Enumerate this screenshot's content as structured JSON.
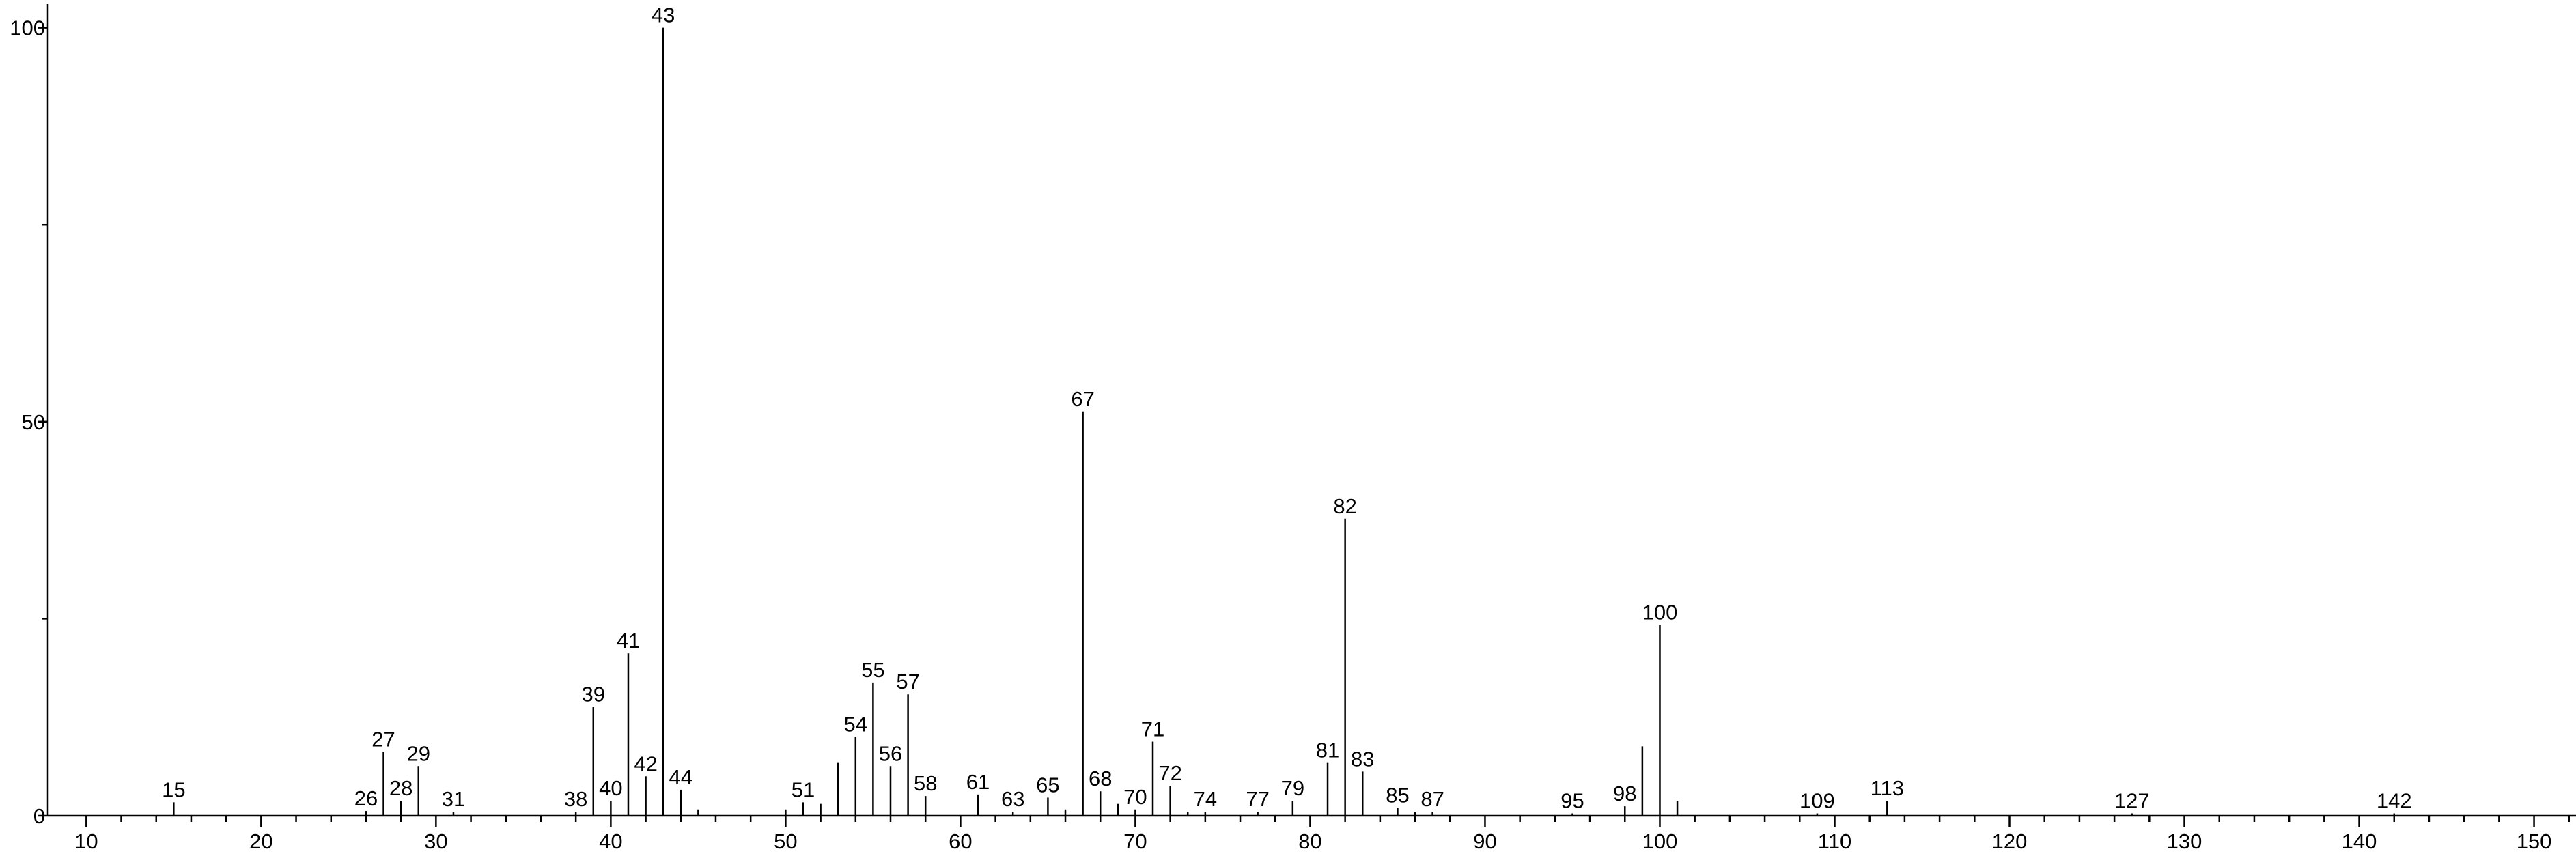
{
  "chart_data": {
    "type": "spectrum",
    "x": [
      15,
      26,
      27,
      28,
      29,
      31,
      38,
      39,
      40,
      41,
      42,
      43,
      44,
      45,
      50,
      51,
      52,
      53,
      54,
      55,
      56,
      57,
      58,
      61,
      63,
      65,
      66,
      67,
      68,
      69,
      70,
      71,
      72,
      73,
      74,
      77,
      79,
      81,
      82,
      83,
      85,
      86,
      87,
      95,
      98,
      99,
      100,
      101,
      109,
      113,
      127,
      142
    ],
    "values": [
      1.7,
      0.6,
      8.1,
      1.9,
      6.3,
      0.5,
      0.5,
      13.8,
      1.9,
      20.6,
      5,
      100,
      3.3,
      0.8,
      0.8,
      1.7,
      1.5,
      6.7,
      10,
      16.9,
      6.3,
      15.4,
      2.5,
      2.7,
      0.5,
      2.3,
      0.8,
      51.3,
      3.1,
      1.5,
      0.8,
      9.4,
      3.8,
      0.5,
      0.5,
      0.5,
      1.9,
      6.7,
      37.7,
      5.6,
      1,
      0.5,
      0.5,
      0.3,
      1.2,
      8.8,
      24.2,
      1.9,
      0.3,
      1.9,
      0.3,
      0.3
    ],
    "peak_labels": [
      15,
      26,
      27,
      28,
      29,
      31,
      38,
      39,
      40,
      41,
      42,
      43,
      44,
      null,
      null,
      51,
      null,
      null,
      54,
      55,
      56,
      57,
      58,
      61,
      63,
      65,
      null,
      67,
      68,
      null,
      70,
      71,
      72,
      null,
      74,
      77,
      79,
      81,
      82,
      83,
      85,
      null,
      87,
      95,
      98,
      null,
      100,
      null,
      109,
      113,
      127,
      142
    ],
    "color": "#000000",
    "xlim": [
      7.8,
      152.4
    ],
    "ylim": [
      0,
      103
    ],
    "xticks": [
      10,
      20,
      30,
      40,
      50,
      60,
      70,
      80,
      90,
      100,
      110,
      120,
      130,
      140,
      150
    ],
    "xminorticks": [
      12,
      14,
      16,
      18,
      22,
      24,
      26,
      28,
      32,
      34,
      36,
      38,
      42,
      44,
      46,
      48,
      52,
      54,
      56,
      58,
      62,
      64,
      66,
      68,
      72,
      74,
      76,
      78,
      82,
      84,
      86,
      88,
      92,
      94,
      96,
      98,
      102,
      104,
      106,
      108,
      112,
      114,
      116,
      118,
      122,
      124,
      126,
      128,
      132,
      134,
      136,
      138,
      142,
      144,
      146,
      148,
      152
    ],
    "yticks": [
      0,
      50,
      100
    ],
    "yminorticks": [
      25,
      75
    ]
  }
}
